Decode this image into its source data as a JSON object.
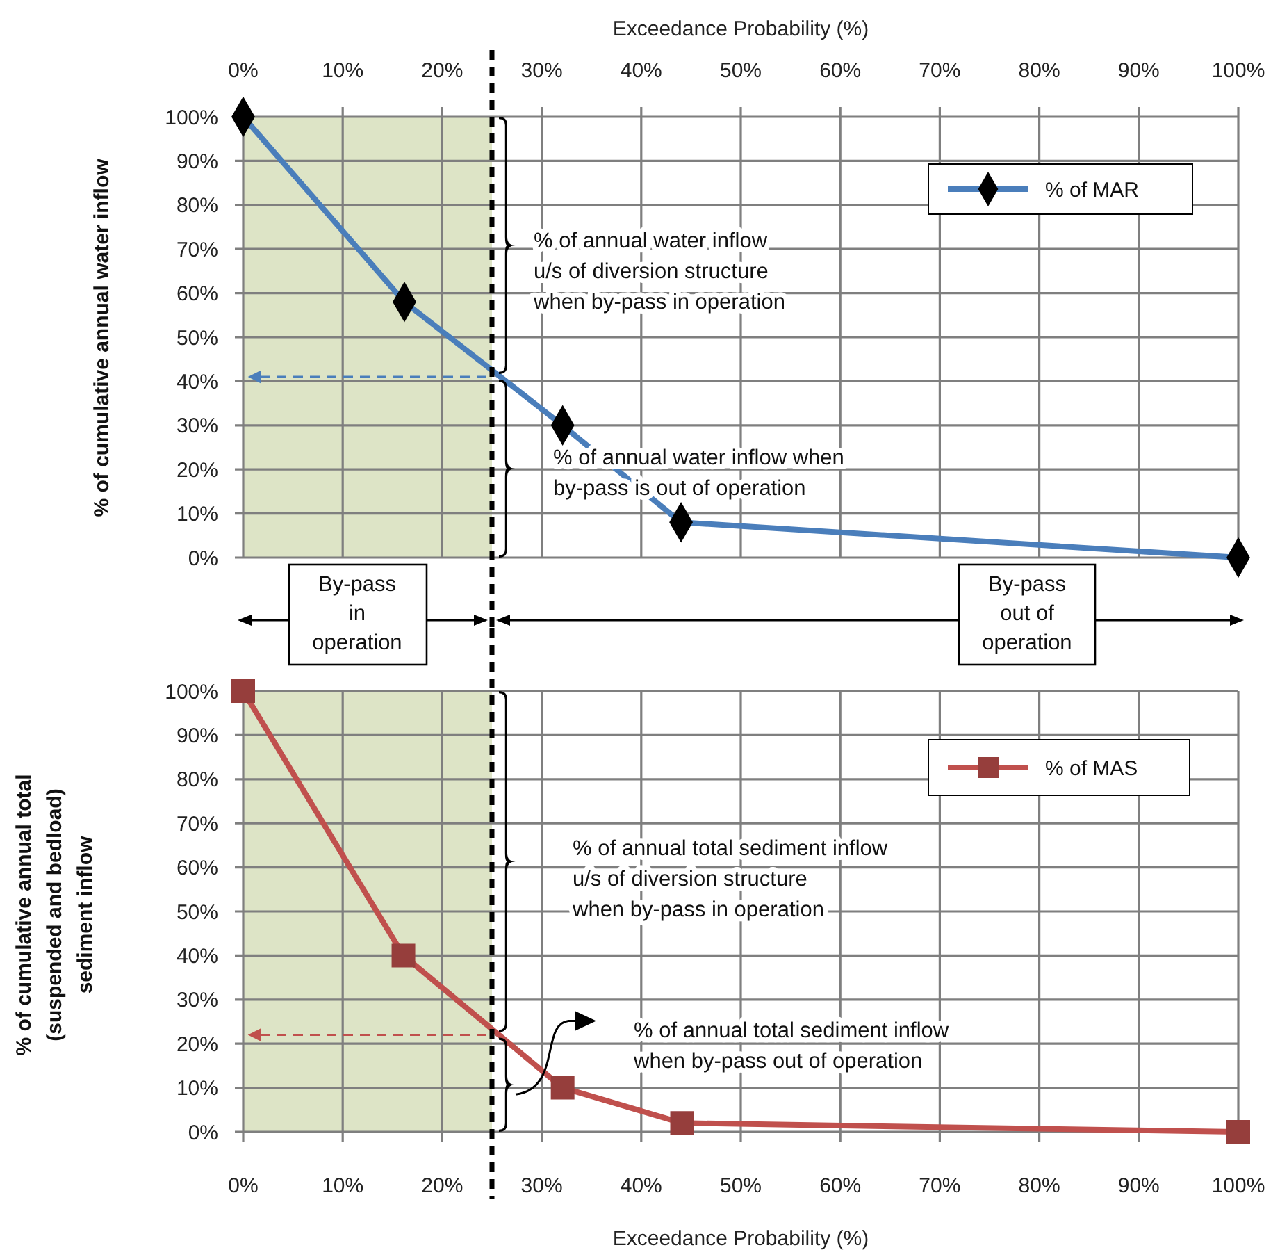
{
  "chart_data": [
    {
      "type": "line",
      "xlabel": "Exceedance Probability (%)",
      "ylabel": "% of cumulative annual water inflow",
      "xlim": [
        0,
        100
      ],
      "ylim": [
        0,
        100
      ],
      "xticks": [
        {
          "value": 0,
          "label": "0%"
        },
        {
          "value": 10,
          "label": "10%"
        },
        {
          "value": 20,
          "label": "20%"
        },
        {
          "value": 30,
          "label": "30%"
        },
        {
          "value": 40,
          "label": "40%"
        },
        {
          "value": 50,
          "label": "50%"
        },
        {
          "value": 60,
          "label": "60%"
        },
        {
          "value": 70,
          "label": "70%"
        },
        {
          "value": 80,
          "label": "80%"
        },
        {
          "value": 90,
          "label": "90%"
        },
        {
          "value": 100,
          "label": "100%"
        }
      ],
      "yticks": [
        {
          "value": 0,
          "label": "0%"
        },
        {
          "value": 10,
          "label": "10%"
        },
        {
          "value": 20,
          "label": "20%"
        },
        {
          "value": 30,
          "label": "30%"
        },
        {
          "value": 40,
          "label": "40%"
        },
        {
          "value": 50,
          "label": "50%"
        },
        {
          "value": 60,
          "label": "60%"
        },
        {
          "value": 70,
          "label": "70%"
        },
        {
          "value": 80,
          "label": "80%"
        },
        {
          "value": 90,
          "label": "90%"
        },
        {
          "value": 100,
          "label": "100%"
        }
      ],
      "grid": true,
      "legend": "top right",
      "marker": "diamond",
      "line_style": "solid",
      "bands": [
        {
          "axis": "x",
          "from": 0,
          "to": 25,
          "color": "#dde4c6"
        }
      ],
      "ref_lines": [
        {
          "axis": "x",
          "value": 25,
          "line_style": "dashed",
          "color": "#000000"
        },
        {
          "axis": "y",
          "value": 41,
          "line_style": "dashed",
          "color": "#4a7ebb"
        }
      ],
      "series": [
        {
          "name": "% of MAR",
          "color": "#4a7ebb",
          "x": [
            0,
            16.2,
            32.1,
            44,
            100
          ],
          "values": [
            100,
            58,
            30,
            8,
            0
          ]
        }
      ],
      "annotations": [
        "% of annual water inflow u/s of diversion structure when by-pass in operation",
        "% of annual water inflow when by-pass is out of operation",
        "By-pass in operation",
        "By-pass out of operation"
      ]
    },
    {
      "type": "line",
      "xlabel": "Exceedance Probability (%)",
      "ylabel": "% of cumulative annual total (suspended and bedload) sediment inflow",
      "xlim": [
        0,
        100
      ],
      "ylim": [
        0,
        100
      ],
      "xticks": [
        {
          "value": 0,
          "label": "0%"
        },
        {
          "value": 10,
          "label": "10%"
        },
        {
          "value": 20,
          "label": "20%"
        },
        {
          "value": 30,
          "label": "30%"
        },
        {
          "value": 40,
          "label": "40%"
        },
        {
          "value": 50,
          "label": "50%"
        },
        {
          "value": 60,
          "label": "60%"
        },
        {
          "value": 70,
          "label": "70%"
        },
        {
          "value": 80,
          "label": "80%"
        },
        {
          "value": 90,
          "label": "90%"
        },
        {
          "value": 100,
          "label": "100%"
        }
      ],
      "yticks": [
        {
          "value": 0,
          "label": "0%"
        },
        {
          "value": 10,
          "label": "10%"
        },
        {
          "value": 20,
          "label": "20%"
        },
        {
          "value": 30,
          "label": "30%"
        },
        {
          "value": 40,
          "label": "40%"
        },
        {
          "value": 50,
          "label": "50%"
        },
        {
          "value": 60,
          "label": "60%"
        },
        {
          "value": 70,
          "label": "70%"
        },
        {
          "value": 80,
          "label": "80%"
        },
        {
          "value": 90,
          "label": "90%"
        },
        {
          "value": 100,
          "label": "100%"
        }
      ],
      "grid": true,
      "legend": "top right",
      "marker": "square",
      "line_style": "solid",
      "bands": [
        {
          "axis": "x",
          "from": 0,
          "to": 25,
          "color": "#dde4c6"
        }
      ],
      "ref_lines": [
        {
          "axis": "x",
          "value": 25,
          "line_style": "dashed",
          "color": "#000000"
        },
        {
          "axis": "y",
          "value": 22,
          "line_style": "dashed",
          "color": "#c0504d"
        }
      ],
      "series": [
        {
          "name": "% of MAS",
          "color": "#c0504d",
          "x": [
            0,
            16.1,
            32.1,
            44.1,
            100
          ],
          "values": [
            100,
            40,
            10,
            2,
            0
          ]
        }
      ],
      "annotations": [
        "% of annual total sediment inflow u/s of diversion structure when by-pass in operation",
        "% of annual total sediment inflow when by-pass out of operation"
      ]
    }
  ]
}
